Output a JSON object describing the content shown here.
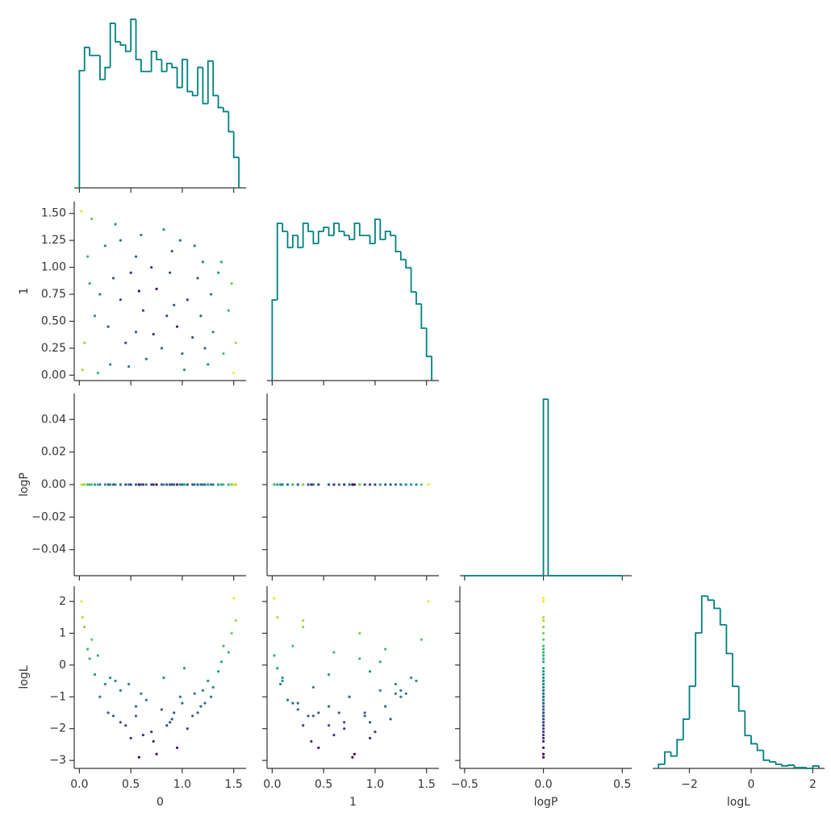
{
  "chart_data": {
    "type": "pairplot",
    "hist_color": "#008080",
    "colormap": "viridis",
    "color_by": 3,
    "clim": [
      -3,
      2.1
    ],
    "hist_ylim": [
      0,
      222
    ],
    "variables": [
      {
        "label": "0",
        "xlim": [
          -0.05,
          1.62
        ],
        "xticks": [
          {
            "value": 0,
            "label": "0.0"
          },
          0.5,
          {
            "value": 1,
            "label": "1.0"
          },
          1.5
        ]
      },
      {
        "label": "1",
        "xlim": [
          -0.05,
          1.62
        ],
        "xticks": [
          {
            "value": 0,
            "label": "0.0"
          },
          0.5,
          {
            "value": 1,
            "label": "1.0"
          },
          1.5
        ],
        "ylim": [
          -0.05,
          1.61
        ],
        "yticks": [
          {
            "value": 0,
            "label": "0.00"
          },
          0.25,
          {
            "value": 0.5,
            "label": "0.50"
          },
          0.75,
          {
            "value": 1,
            "label": "1.00"
          },
          1.25,
          {
            "value": 1.5,
            "label": "1.50"
          }
        ]
      },
      {
        "label": "logP",
        "xlim": [
          -0.53,
          0.56
        ],
        "xticks": [
          {
            "value": -0.5,
            "label": "−0.5"
          },
          {
            "value": 0,
            "label": "0.0"
          },
          0.5
        ],
        "ylim": [
          -0.056,
          0.056
        ],
        "yticks": [
          {
            "value": -0.04,
            "label": "−0.04"
          },
          {
            "value": -0.02,
            "label": "−0.02"
          },
          {
            "value": 0,
            "label": "0.00"
          },
          0.02,
          0.04
        ]
      },
      {
        "label": "logL",
        "xlim": [
          -3.19,
          2.38
        ],
        "xticks": [
          {
            "value": -2,
            "label": "−2"
          },
          0,
          2
        ],
        "ylim": [
          -3.25,
          2.48
        ],
        "yticks": [
          {
            "value": -3,
            "label": "−3"
          },
          {
            "value": -2,
            "label": "−2"
          },
          {
            "value": -1,
            "label": "−1"
          },
          0,
          1,
          2
        ]
      }
    ],
    "histograms": [
      {
        "bins": [
          0,
          0.05,
          0.1,
          0.15,
          0.2,
          0.25,
          0.3,
          0.35,
          0.4,
          0.45,
          0.5,
          0.55,
          0.6,
          0.65,
          0.7,
          0.75,
          0.8,
          0.85,
          0.9,
          0.95,
          1.0,
          1.05,
          1.1,
          1.15,
          1.2,
          1.25,
          1.3,
          1.35,
          1.4,
          1.45,
          1.5,
          1.55
        ],
        "counts": [
          146,
          175,
          165,
          165,
          135,
          150,
          205,
          182,
          178,
          170,
          210,
          160,
          145,
          145,
          170,
          160,
          145,
          155,
          150,
          125,
          160,
          120,
          115,
          150,
          105,
          158,
          115,
          100,
          95,
          70,
          38
        ]
      },
      {
        "bins": [
          0,
          0.05,
          0.1,
          0.15,
          0.2,
          0.25,
          0.3,
          0.35,
          0.4,
          0.45,
          0.5,
          0.55,
          0.6,
          0.65,
          0.7,
          0.75,
          0.8,
          0.85,
          0.9,
          0.95,
          1.0,
          1.05,
          1.1,
          1.15,
          1.2,
          1.25,
          1.3,
          1.35,
          1.4,
          1.45,
          1.5,
          1.55
        ],
        "counts": [
          100,
          195,
          185,
          165,
          180,
          165,
          195,
          185,
          170,
          185,
          190,
          180,
          195,
          185,
          180,
          175,
          195,
          180,
          180,
          170,
          200,
          175,
          185,
          180,
          160,
          150,
          140,
          110,
          95,
          65,
          30
        ]
      },
      {
        "bins": [
          -0.5,
          0,
          0.03,
          0.5
        ],
        "counts": [
          0,
          215,
          0
        ]
      },
      {
        "bins": [
          -3.0,
          -2.8,
          -2.6,
          -2.4,
          -2.2,
          -2.0,
          -1.8,
          -1.6,
          -1.4,
          -1.2,
          -1.0,
          -0.8,
          -0.6,
          -0.4,
          -0.2,
          0,
          0.2,
          0.4,
          0.6,
          0.8,
          1.0,
          1.2,
          1.4,
          1.6,
          1.8,
          2.0,
          2.2
        ],
        "counts": [
          5,
          20,
          15,
          35,
          60,
          100,
          165,
          210,
          205,
          195,
          175,
          140,
          100,
          70,
          40,
          30,
          22,
          10,
          8,
          5,
          3,
          4,
          1,
          1,
          0,
          3
        ]
      }
    ],
    "samples": [
      [
        0.02,
        1.5,
        0.05,
        0.1,
        0.25,
        0.4,
        0.55,
        0.7,
        0.85,
        1.0,
        1.15,
        1.3,
        1.45,
        0.6,
        0.3,
        0.9,
        1.2,
        0.15,
        0.5,
        0.8,
        1.05,
        1.35,
        0.35,
        0.65,
        0.95,
        1.25,
        0.2,
        0.45,
        0.75,
        1.1,
        1.4,
        0.08,
        0.55,
        0.88,
        1.18,
        1.48,
        0.28,
        0.62,
        0.98,
        1.28,
        0.03,
        0.4,
        0.72,
        1.02,
        1.38,
        0.18,
        0.48,
        0.82,
        1.12,
        0.33,
        1.52,
        0.12,
        0.58,
        1.22,
        0.92
      ],
      [
        1.52,
        0.02,
        0.3,
        0.85,
        1.2,
        0.7,
        0.4,
        1.0,
        0.55,
        0.2,
        0.9,
        0.4,
        0.6,
        1.3,
        0.1,
        1.15,
        1.05,
        0.55,
        0.95,
        0.25,
        0.7,
        0.95,
        1.4,
        0.15,
        0.45,
        0.1,
        0.75,
        0.3,
        0.8,
        0.35,
        0.2,
        1.1,
        1.1,
        0.95,
        0.55,
        0.85,
        0.45,
        0.6,
        1.25,
        0.75,
        0.05,
        1.25,
        0.38,
        0.05,
        1.05,
        0.02,
        0.08,
        1.35,
        1.2,
        0.9,
        0.3,
        1.45,
        0.78,
        0.25,
        0.65
      ],
      [
        0,
        0,
        0,
        0,
        0,
        0,
        0,
        0,
        0,
        0,
        0,
        0,
        0,
        0,
        0,
        0,
        0,
        0,
        0,
        0,
        0,
        0,
        0,
        0,
        0,
        0,
        0,
        0,
        0,
        0,
        0,
        0,
        0,
        0,
        0,
        0,
        0,
        0,
        0,
        0,
        0,
        0,
        0,
        0,
        0,
        0,
        0,
        0,
        0,
        0,
        0,
        0,
        0,
        0,
        0
      ],
      [
        2.0,
        2.1,
        1.2,
        0.2,
        -0.6,
        -1.8,
        -1.6,
        -2.1,
        -1.9,
        -1.2,
        -1.5,
        -0.7,
        0.4,
        -0.9,
        -0.4,
        -1.7,
        -0.8,
        -0.3,
        -2.3,
        -1.4,
        -2.0,
        -0.2,
        -0.5,
        -1.1,
        -2.6,
        -0.5,
        -1.0,
        -1.9,
        -2.8,
        -1.6,
        0.6,
        0.5,
        -1.3,
        -1.8,
        -1.3,
        1.0,
        -1.5,
        -2.2,
        -1.0,
        -1.0,
        1.5,
        -0.8,
        -2.4,
        -0.1,
        0.1,
        0.3,
        -0.6,
        -0.4,
        -0.9,
        -1.6,
        1.4,
        0.8,
        -2.9,
        -1.2,
        -1.5
      ]
    ]
  }
}
